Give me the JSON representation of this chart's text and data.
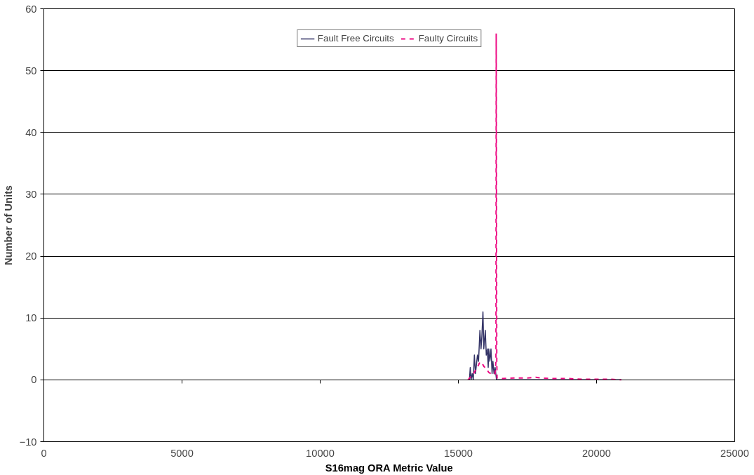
{
  "chart_data": {
    "type": "line",
    "xlabel": "S16mag ORA Metric Value",
    "ylabel": "Number of Units",
    "xlim": [
      0,
      25000
    ],
    "xticks": [
      0,
      5000,
      10000,
      15000,
      20000,
      25000
    ],
    "ylim": [
      -10,
      60
    ],
    "yticks": [
      -10,
      0,
      10,
      20,
      30,
      40,
      50,
      60
    ],
    "grid": "y",
    "legend": "top",
    "series": [
      {
        "name": "Fault Free Circuits",
        "color": "#333366",
        "line_style": "solid",
        "x": [
          15350,
          15400,
          15430,
          15460,
          15500,
          15540,
          15580,
          15620,
          15690,
          15730,
          15780,
          15820,
          15850,
          15890,
          15920,
          15975,
          16010,
          16050,
          16080,
          16100,
          16140,
          16180,
          16220,
          16250,
          16290,
          16330,
          16380,
          16500,
          17000,
          18000,
          19000,
          20000,
          20900
        ],
        "values": [
          0,
          0,
          2,
          0,
          1,
          0,
          4,
          1,
          4,
          3,
          8,
          5,
          7,
          11,
          5,
          8,
          4,
          5,
          2,
          5,
          3,
          5,
          1,
          3,
          1,
          2,
          0,
          0,
          0,
          0,
          0,
          0,
          0
        ]
      },
      {
        "name": "Faulty Circuits",
        "color": "#ee0a84",
        "line_style": "dashed",
        "x": [
          15350,
          15450,
          15550,
          15650,
          15720,
          15780,
          15820,
          15870,
          15920,
          15980,
          16040,
          16100,
          16180,
          16260,
          16330,
          16360,
          16370,
          16390,
          16400,
          16600,
          17000,
          17500,
          17800,
          18000,
          18500,
          19000,
          19500,
          20000,
          20500,
          20900
        ],
        "values": [
          0,
          0.5,
          1,
          1.8,
          2.3,
          2.9,
          2.8,
          2.6,
          2.2,
          1.9,
          1.6,
          1.2,
          1.0,
          0.8,
          1.0,
          3,
          56,
          3,
          0.3,
          0.2,
          0.3,
          0.3,
          0.4,
          0.3,
          0.2,
          0.2,
          0.1,
          0.1,
          0.1,
          0
        ]
      }
    ]
  }
}
